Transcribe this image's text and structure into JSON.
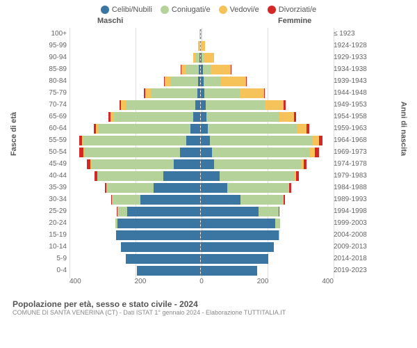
{
  "chart": {
    "type": "population-pyramid",
    "legend": [
      {
        "label": "Celibi/Nubili",
        "color": "#3b76a3"
      },
      {
        "label": "Coniugati/e",
        "color": "#b5d29b"
      },
      {
        "label": "Vedovi/e",
        "color": "#f6c35b"
      },
      {
        "label": "Divorziati/e",
        "color": "#d62728"
      }
    ],
    "header_male": "Maschi",
    "header_female": "Femmine",
    "y_left_title": "Fasce di età",
    "y_right_title": "Anni di nascita",
    "x_max": 400,
    "x_ticks": [
      400,
      200,
      0,
      200,
      400
    ],
    "colors": {
      "single": "#3b76a3",
      "married": "#b5d29b",
      "widowed": "#f6c35b",
      "divorced": "#d62728",
      "grid": "#dddddd",
      "axis_dash": "#888888",
      "background": "#ffffff"
    },
    "font_sizes": {
      "label": 10,
      "axis_title": 11,
      "legend": 11,
      "footer_title": 12,
      "footer_sub": 9
    },
    "rows": [
      {
        "age": "100+",
        "year": "≤ 1923",
        "m": {
          "single": 0,
          "married": 0,
          "widowed": 1,
          "divorced": 0
        },
        "f": {
          "single": 0,
          "married": 0,
          "widowed": 2,
          "divorced": 0
        }
      },
      {
        "age": "95-99",
        "year": "1924-1928",
        "m": {
          "single": 0,
          "married": 2,
          "widowed": 3,
          "divorced": 0
        },
        "f": {
          "single": 1,
          "married": 1,
          "widowed": 12,
          "divorced": 0
        }
      },
      {
        "age": "90-94",
        "year": "1929-1933",
        "m": {
          "single": 2,
          "married": 10,
          "widowed": 8,
          "divorced": 0
        },
        "f": {
          "single": 4,
          "married": 5,
          "widowed": 32,
          "divorced": 0
        }
      },
      {
        "age": "85-89",
        "year": "1934-1938",
        "m": {
          "single": 4,
          "married": 38,
          "widowed": 14,
          "divorced": 2
        },
        "f": {
          "single": 8,
          "married": 22,
          "widowed": 62,
          "divorced": 1
        }
      },
      {
        "age": "80-84",
        "year": "1939-1943",
        "m": {
          "single": 6,
          "married": 82,
          "widowed": 18,
          "divorced": 2
        },
        "f": {
          "single": 10,
          "married": 52,
          "widowed": 76,
          "divorced": 2
        }
      },
      {
        "age": "75-79",
        "year": "1944-1948",
        "m": {
          "single": 8,
          "married": 140,
          "widowed": 18,
          "divorced": 3
        },
        "f": {
          "single": 12,
          "married": 108,
          "widowed": 72,
          "divorced": 3
        }
      },
      {
        "age": "70-74",
        "year": "1949-1953",
        "m": {
          "single": 14,
          "married": 210,
          "widowed": 14,
          "divorced": 5
        },
        "f": {
          "single": 16,
          "married": 178,
          "widowed": 58,
          "divorced": 5
        }
      },
      {
        "age": "65-69",
        "year": "1954-1958",
        "m": {
          "single": 20,
          "married": 240,
          "widowed": 10,
          "divorced": 6
        },
        "f": {
          "single": 18,
          "married": 222,
          "widowed": 44,
          "divorced": 6
        }
      },
      {
        "age": "60-64",
        "year": "1959-1963",
        "m": {
          "single": 28,
          "married": 280,
          "widowed": 6,
          "divorced": 8
        },
        "f": {
          "single": 22,
          "married": 270,
          "widowed": 30,
          "divorced": 8
        }
      },
      {
        "age": "55-59",
        "year": "1964-1968",
        "m": {
          "single": 42,
          "married": 310,
          "widowed": 4,
          "divorced": 10
        },
        "f": {
          "single": 28,
          "married": 310,
          "widowed": 20,
          "divorced": 12
        }
      },
      {
        "age": "50-54",
        "year": "1969-1973",
        "m": {
          "single": 60,
          "married": 290,
          "widowed": 3,
          "divorced": 12
        },
        "f": {
          "single": 34,
          "married": 298,
          "widowed": 14,
          "divorced": 12
        }
      },
      {
        "age": "45-49",
        "year": "1974-1978",
        "m": {
          "single": 80,
          "married": 250,
          "widowed": 2,
          "divorced": 10
        },
        "f": {
          "single": 42,
          "married": 262,
          "widowed": 8,
          "divorced": 10
        }
      },
      {
        "age": "40-44",
        "year": "1979-1983",
        "m": {
          "single": 110,
          "married": 200,
          "widowed": 1,
          "divorced": 8
        },
        "f": {
          "single": 58,
          "married": 228,
          "widowed": 4,
          "divorced": 8
        }
      },
      {
        "age": "35-39",
        "year": "1984-1988",
        "m": {
          "single": 140,
          "married": 144,
          "widowed": 0,
          "divorced": 4
        },
        "f": {
          "single": 80,
          "married": 186,
          "widowed": 2,
          "divorced": 6
        }
      },
      {
        "age": "30-34",
        "year": "1989-1993",
        "m": {
          "single": 180,
          "married": 86,
          "widowed": 0,
          "divorced": 2
        },
        "f": {
          "single": 120,
          "married": 130,
          "widowed": 1,
          "divorced": 4
        }
      },
      {
        "age": "25-29",
        "year": "1994-1998",
        "m": {
          "single": 220,
          "married": 30,
          "widowed": 0,
          "divorced": 1
        },
        "f": {
          "single": 176,
          "married": 60,
          "widowed": 0,
          "divorced": 2
        }
      },
      {
        "age": "20-24",
        "year": "1999-2003",
        "m": {
          "single": 250,
          "married": 6,
          "widowed": 0,
          "divorced": 0
        },
        "f": {
          "single": 226,
          "married": 16,
          "widowed": 0,
          "divorced": 0
        }
      },
      {
        "age": "15-19",
        "year": "2004-2008",
        "m": {
          "single": 254,
          "married": 0,
          "widowed": 0,
          "divorced": 0
        },
        "f": {
          "single": 236,
          "married": 2,
          "widowed": 0,
          "divorced": 0
        }
      },
      {
        "age": "10-14",
        "year": "2009-2013",
        "m": {
          "single": 240,
          "married": 0,
          "widowed": 0,
          "divorced": 0
        },
        "f": {
          "single": 222,
          "married": 0,
          "widowed": 0,
          "divorced": 0
        }
      },
      {
        "age": "5-9",
        "year": "2014-2018",
        "m": {
          "single": 224,
          "married": 0,
          "widowed": 0,
          "divorced": 0
        },
        "f": {
          "single": 206,
          "married": 0,
          "widowed": 0,
          "divorced": 0
        }
      },
      {
        "age": "0-4",
        "year": "2019-2023",
        "m": {
          "single": 190,
          "married": 0,
          "widowed": 0,
          "divorced": 0
        },
        "f": {
          "single": 172,
          "married": 0,
          "widowed": 0,
          "divorced": 0
        }
      }
    ]
  },
  "footer": {
    "title": "Popolazione per età, sesso e stato civile - 2024",
    "subtitle": "COMUNE DI SANTA VENERINA (CT) - Dati ISTAT 1° gennaio 2024 - Elaborazione TUTTITALIA.IT"
  }
}
